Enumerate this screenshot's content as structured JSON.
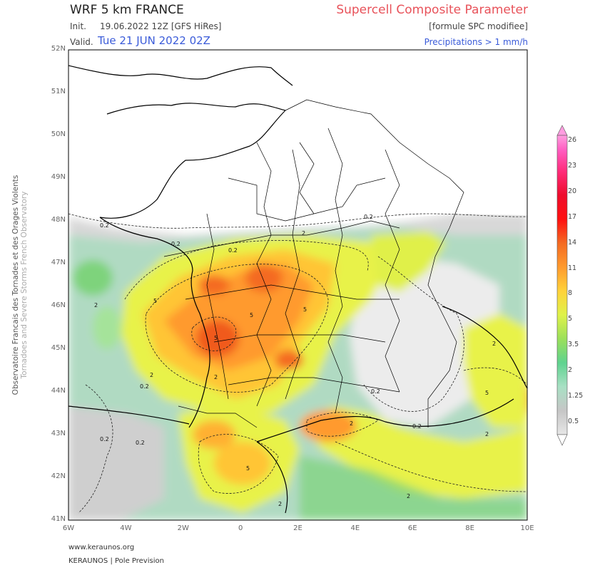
{
  "header": {
    "model_title": "WRF 5 km FRANCE",
    "parameter_title": "Supercell Composite Parameter",
    "init_label": "Init.",
    "init_value": "19.06.2022 12Z [GFS HiRes]",
    "formula_note": "[formule SPC modifiee]",
    "valid_label": "Valid.",
    "valid_value": "Tue 21 JUN 2022 02Z",
    "precip_note": "Precipitations > 1 mm/h"
  },
  "side_credit": {
    "line1": "Observatoire Francais des Tornades et des Orages Violents",
    "line2": "Tornadoes and Severe Storms French Observatory"
  },
  "footer": {
    "url": "www.keraunos.org",
    "org": "KERAUNOS | Pole Prevision"
  },
  "map": {
    "lat_ticks": [
      "52N",
      "51N",
      "50N",
      "49N",
      "48N",
      "47N",
      "46N",
      "45N",
      "44N",
      "43N",
      "42N",
      "41N"
    ],
    "lon_ticks": [
      "6W",
      "4W",
      "2W",
      "0",
      "2E",
      "4E",
      "6E",
      "8E",
      "10E"
    ],
    "contour_labels": [
      "0.2",
      "0.2",
      "0.2",
      "0.2",
      "0.2",
      "0.2",
      "0.2",
      "0.2",
      "0.2",
      "2",
      "2",
      "2",
      "2",
      "2",
      "2",
      "2",
      "2",
      "2",
      "5",
      "5",
      "5",
      "5",
      "5",
      "5"
    ]
  },
  "colorbar": {
    "labels": [
      "26",
      "23",
      "20",
      "17",
      "14",
      "11",
      "8",
      "5",
      "3.5",
      "2",
      "1.25",
      "0.5"
    ],
    "colors": [
      "#d9d9d9",
      "#a8e0c4",
      "#5fd38f",
      "#9be05a",
      "#dff24a",
      "#ffd23a",
      "#ff9a2e",
      "#f46a22",
      "#ef3c1c",
      "#ff1010",
      "#ff2c7a",
      "#ff5cc0",
      "#ff9de0"
    ]
  }
}
